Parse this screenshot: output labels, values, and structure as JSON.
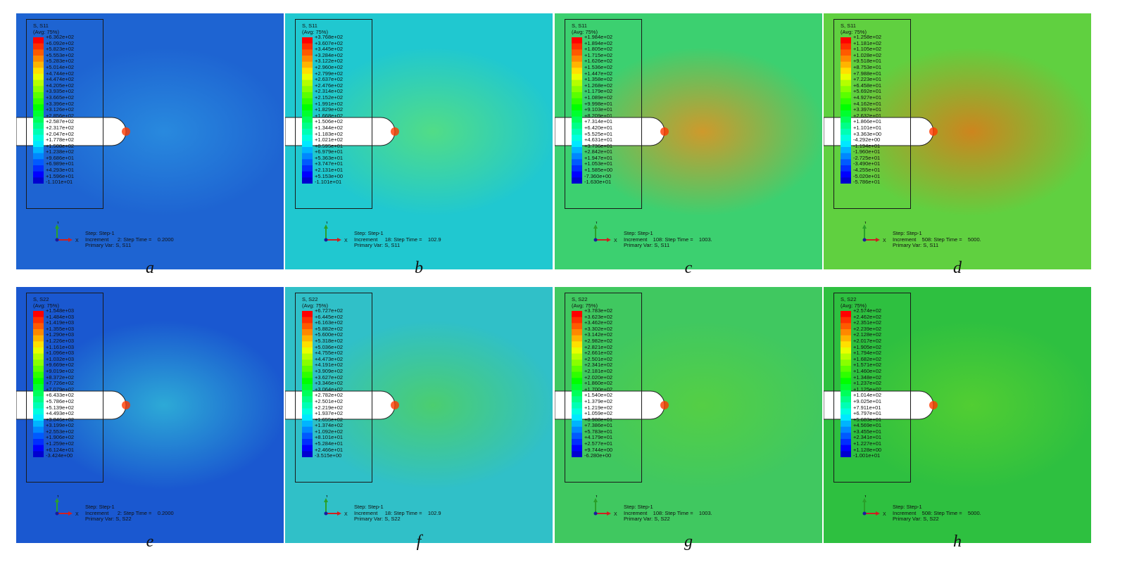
{
  "panels": [
    {
      "label": "a",
      "title": "S, S11",
      "avg": "(Avg: 75%)",
      "legend_values": [
        "+6.362e+02",
        "+6.092e+02",
        "+5.823e+02",
        "+5.553e+02",
        "+5.283e+02",
        "+5.014e+02",
        "+4.744e+02",
        "+4.474e+02",
        "+4.205e+02",
        "+3.935e+02",
        "+3.665e+02",
        "+3.396e+02",
        "+3.126e+02",
        "+2.856e+02",
        "+2.587e+02",
        "+2.317e+02",
        "+2.047e+02",
        "+1.778e+02",
        "+1.508e+02",
        "+1.238e+02",
        "+9.686e+01",
        "+6.989e+01",
        "+4.293e+01",
        "+1.596e+01",
        "-1.101e+01"
      ],
      "step": "Step: Step-1",
      "increment": "Increment      2: Step Time =    0.2000",
      "primary": "Primary Var: S, S11",
      "bg": "#1e64d2",
      "hot": "#2a90e0"
    },
    {
      "label": "b",
      "title": "S, S11",
      "avg": "(Avg: 75%)",
      "legend_values": [
        "+3.768e+02",
        "+3.607e+02",
        "+3.445e+02",
        "+3.284e+02",
        "+3.122e+02",
        "+2.960e+02",
        "+2.799e+02",
        "+2.637e+02",
        "+2.476e+02",
        "+2.314e+02",
        "+2.152e+02",
        "+1.991e+02",
        "+1.829e+02",
        "+1.668e+02",
        "+1.506e+02",
        "+1.344e+02",
        "+1.183e+02",
        "+1.021e+02",
        "+8.595e+01",
        "+6.979e+01",
        "+5.363e+01",
        "+3.747e+01",
        "+2.131e+01",
        "+5.153e+00",
        "-1.101e+01"
      ],
      "step": "Step: Step-1",
      "increment": "Increment     18: Step Time =    102.9",
      "primary": "Primary Var: S, S11",
      "bg": "#20c8d0",
      "hot": "#5ae07a"
    },
    {
      "label": "c",
      "title": "S, S11",
      "avg": "(Avg: 75%)",
      "legend_values": [
        "+1.984e+02",
        "+1.894e+02",
        "+1.805e+02",
        "+1.715e+02",
        "+1.626e+02",
        "+1.536e+02",
        "+1.447e+02",
        "+1.358e+02",
        "+1.268e+02",
        "+1.179e+02",
        "+1.089e+02",
        "+9.998e+01",
        "+9.103e+01",
        "+8.209e+01",
        "+7.314e+01",
        "+6.420e+01",
        "+5.525e+01",
        "+4.631e+01",
        "+3.736e+01",
        "+2.842e+01",
        "+1.947e+01",
        "+1.053e+01",
        "+1.585e+00",
        "-7.360e+00",
        "-1.630e+01"
      ],
      "step": "Step: Step-1",
      "increment": "Increment    108: Step Time =    1003.",
      "primary": "Primary Var: S, S11",
      "bg": "#3cd070",
      "hot": "#e89020"
    },
    {
      "label": "d",
      "title": "S, S11",
      "avg": "(Avg: 75%)",
      "legend_values": [
        "+1.258e+02",
        "+1.181e+02",
        "+1.105e+02",
        "+1.028e+02",
        "+9.518e+01",
        "+8.753e+01",
        "+7.988e+01",
        "+7.223e+01",
        "+6.458e+01",
        "+5.692e+01",
        "+4.927e+01",
        "+4.162e+01",
        "+3.397e+01",
        "+2.632e+01",
        "+1.866e+01",
        "+1.101e+01",
        "+3.363e+00",
        "-4.292e+00",
        "-1.194e+01",
        "-1.960e+01",
        "-2.725e+01",
        "-3.490e+01",
        "-4.255e+01",
        "-5.020e+01",
        "-5.786e+01"
      ],
      "step": "Step: Step-1",
      "increment": "Increment    508: Step Time =    5000.",
      "primary": "Primary Var: S, S11",
      "bg": "#60d040",
      "hot": "#e07818"
    },
    {
      "label": "e",
      "title": "S, S22",
      "avg": "(Avg: 75%)",
      "legend_values": [
        "+1.548e+03",
        "+1.484e+03",
        "+1.419e+03",
        "+1.355e+03",
        "+1.290e+03",
        "+1.226e+03",
        "+1.161e+03",
        "+1.096e+03",
        "+1.032e+03",
        "+9.669e+02",
        "+9.019e+02",
        "+8.372e+02",
        "+7.726e+02",
        "+7.079e+02",
        "+6.433e+02",
        "+5.786e+02",
        "+5.139e+02",
        "+4.493e+02",
        "+3.846e+02",
        "+3.199e+02",
        "+2.553e+02",
        "+1.906e+02",
        "+1.259e+02",
        "+6.124e+01",
        "-3.424e+00"
      ],
      "step": "Step: Step-1",
      "increment": "Increment      2: Step Time =    0.2000",
      "primary": "Primary Var: S, S22",
      "bg": "#1a58d0",
      "hot": "#30b8d8"
    },
    {
      "label": "f",
      "title": "S, S22",
      "avg": "(Avg: 75%)",
      "legend_values": [
        "+6.727e+02",
        "+6.445e+02",
        "+6.163e+02",
        "+5.882e+02",
        "+5.600e+02",
        "+5.318e+02",
        "+5.036e+02",
        "+4.755e+02",
        "+4.473e+02",
        "+4.191e+02",
        "+3.909e+02",
        "+3.627e+02",
        "+3.346e+02",
        "+3.064e+02",
        "+2.782e+02",
        "+2.501e+02",
        "+2.219e+02",
        "+1.937e+02",
        "+1.655e+02",
        "+1.374e+02",
        "+1.092e+02",
        "+8.101e+01",
        "+5.284e+01",
        "+2.466e+01",
        "-3.515e+00"
      ],
      "step": "Step: Step-1",
      "increment": "Increment     18: Step Time =    102.9",
      "primary": "Primary Var: S, S22",
      "bg": "#30c0c8",
      "hot": "#50d060"
    },
    {
      "label": "g",
      "title": "S, S22",
      "avg": "(Avg: 75%)",
      "legend_values": [
        "+3.783e+02",
        "+3.623e+02",
        "+3.462e+02",
        "+3.302e+02",
        "+3.142e+02",
        "+2.982e+02",
        "+2.821e+02",
        "+2.661e+02",
        "+2.501e+02",
        "+2.341e+02",
        "+2.181e+02",
        "+2.020e+02",
        "+1.860e+02",
        "+1.700e+02",
        "+1.540e+02",
        "+1.379e+02",
        "+1.219e+02",
        "+1.059e+02",
        "+8.988e+01",
        "+7.386e+01",
        "+5.783e+01",
        "+4.179e+01",
        "+2.577e+01",
        "+9.744e+00",
        "-6.280e+00"
      ],
      "step": "Step: Step-1",
      "increment": "Increment    108: Step Time =    1003.",
      "primary": "Primary Var: S, S22",
      "bg": "#40c860",
      "hot": "#58d040"
    },
    {
      "label": "h",
      "title": "S, S22",
      "avg": "(Avg: 75%)",
      "legend_values": [
        "+2.574e+02",
        "+2.462e+02",
        "+2.351e+02",
        "+2.239e+02",
        "+2.128e+02",
        "+2.017e+02",
        "+1.905e+02",
        "+1.794e+02",
        "+1.682e+02",
        "+1.571e+02",
        "+1.460e+02",
        "+1.348e+02",
        "+1.237e+02",
        "+1.125e+02",
        "+1.014e+02",
        "+9.025e+01",
        "+7.911e+01",
        "+6.797e+01",
        "+5.683e+01",
        "+4.569e+01",
        "+3.455e+01",
        "+2.341e+01",
        "+1.227e+01",
        "+1.128e+00",
        "-1.001e+01"
      ],
      "step": "Step: Step-1",
      "increment": "Increment    508: Step Time =    5000.",
      "primary": "Primary Var: S, S22",
      "bg": "#2ec040",
      "hot": "#58d030"
    }
  ],
  "axis_labels": {
    "x": "X",
    "y": "Y"
  },
  "colors": {
    "legend_bands": [
      "#ff0000",
      "#ff2e00",
      "#ff5a00",
      "#ff8800",
      "#ffb400",
      "#ffe000",
      "#e8ff00",
      "#b4ff00",
      "#88ff00",
      "#5aff00",
      "#2eff00",
      "#00ff00",
      "#00ff2e",
      "#00ff5a",
      "#00ff88",
      "#00ffb4",
      "#00ffe0",
      "#00e8ff",
      "#00b4ff",
      "#0088ff",
      "#005aff",
      "#002eff",
      "#0000ff",
      "#0000d0"
    ]
  }
}
